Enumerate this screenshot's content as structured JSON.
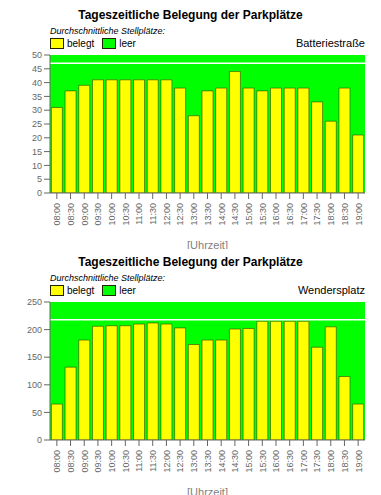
{
  "chart_data": [
    {
      "type": "bar",
      "title": "Tageszeitliche Belegung der Parkplätze",
      "subtitle": "Batteriestraße",
      "annotations": [
        "Durchschnittliche Stellplätze:"
      ],
      "x_label": "[Uhrzeit]",
      "categories": [
        "08:00",
        "08:30",
        "09:00",
        "09:30",
        "10:00",
        "10:30",
        "11:00",
        "11:30",
        "12:00",
        "12:30",
        "13:00",
        "13:30",
        "14:00",
        "14:30",
        "15:00",
        "15:30",
        "16:00",
        "16:30",
        "17:00",
        "17:30",
        "18:00",
        "18:30",
        "19:00"
      ],
      "series": [
        {
          "name": "belegt",
          "color": "#FFFF00",
          "values": [
            31,
            37,
            39,
            41,
            41,
            41,
            41,
            41,
            41,
            38,
            28,
            37,
            38,
            44,
            38,
            37,
            38,
            38,
            38,
            33,
            26,
            38,
            21
          ]
        }
      ],
      "background": {
        "name": "leer",
        "color": "#00FF00"
      },
      "total_capacity": 47,
      "ylim": [
        0,
        50
      ],
      "yticks": [
        0,
        5,
        10,
        15,
        20,
        25,
        30,
        35,
        40,
        45,
        50
      ],
      "legend": "upper left",
      "grid": false
    },
    {
      "type": "bar",
      "title": "Tageszeitliche Belegung der Parkplätze",
      "subtitle": "Wendersplatz",
      "annotations": [
        "Durchschnittliche Stellplätze:"
      ],
      "x_label": "[Uhrzeit]",
      "categories": [
        "08:00",
        "08:30",
        "09:00",
        "09:30",
        "10:00",
        "10:30",
        "11:00",
        "11:30",
        "12:00",
        "12:30",
        "13:00",
        "13:30",
        "14:00",
        "14:30",
        "15:00",
        "15:30",
        "16:00",
        "16:30",
        "17:00",
        "17:30",
        "18:00",
        "18:30",
        "19:00"
      ],
      "series": [
        {
          "name": "belegt",
          "color": "#FFFF00",
          "values": [
            65,
            132,
            181,
            206,
            207,
            207,
            210,
            212,
            210,
            203,
            173,
            181,
            181,
            201,
            202,
            215,
            215,
            215,
            215,
            168,
            205,
            115,
            65
          ]
        }
      ],
      "background": {
        "name": "leer",
        "color": "#00FF00"
      },
      "total_capacity": 218,
      "ylim": [
        0,
        250
      ],
      "yticks": [
        0,
        50,
        100,
        150,
        200,
        250
      ],
      "legend": "upper left",
      "grid": false
    }
  ]
}
